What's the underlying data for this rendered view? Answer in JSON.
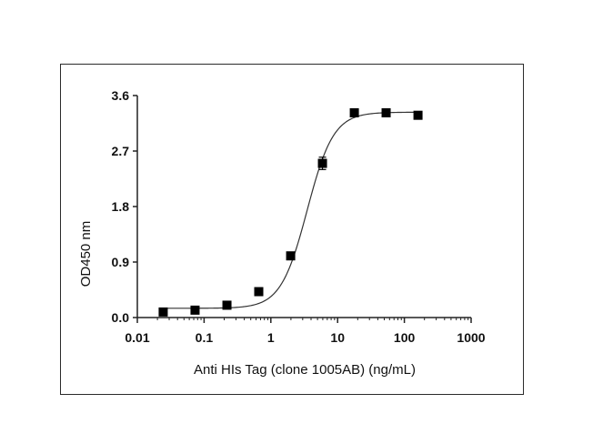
{
  "chart_data": {
    "type": "scatter",
    "title": "",
    "xlabel": "Anti HIs Tag (clone 1005AB) (ng/mL)",
    "ylabel": "OD450 nm",
    "xscale": "log",
    "xlim": [
      0.01,
      1000
    ],
    "ylim": [
      0,
      3.6
    ],
    "x_ticks": [
      0.01,
      0.1,
      1,
      10,
      100,
      1000
    ],
    "x_tick_labels": [
      "0.01",
      "0.1",
      "1",
      "10",
      "100",
      "1000"
    ],
    "y_ticks": [
      0,
      0.9,
      1.8,
      2.7,
      3.6
    ],
    "y_tick_labels": [
      "0.0",
      "0.9",
      "1.8",
      "2.7",
      "3.6"
    ],
    "grid": false,
    "series": [
      {
        "marker": "square",
        "color": "#000000",
        "x": [
          0.0244,
          0.0732,
          0.22,
          0.659,
          1.98,
          5.93,
          17.8,
          53.3,
          160
        ],
        "y": [
          0.09,
          0.12,
          0.2,
          0.42,
          1.0,
          2.5,
          3.32,
          3.32,
          3.28
        ],
        "error": [
          0.02,
          0.02,
          0.02,
          0.03,
          0.03,
          0.1,
          0.03,
          0.03,
          0.03
        ]
      }
    ],
    "fit_curve": {
      "model": "4PL",
      "bottom": 0.15,
      "top": 3.33,
      "ec50": 3.5,
      "hill": 2.2,
      "color": "#333333"
    }
  }
}
